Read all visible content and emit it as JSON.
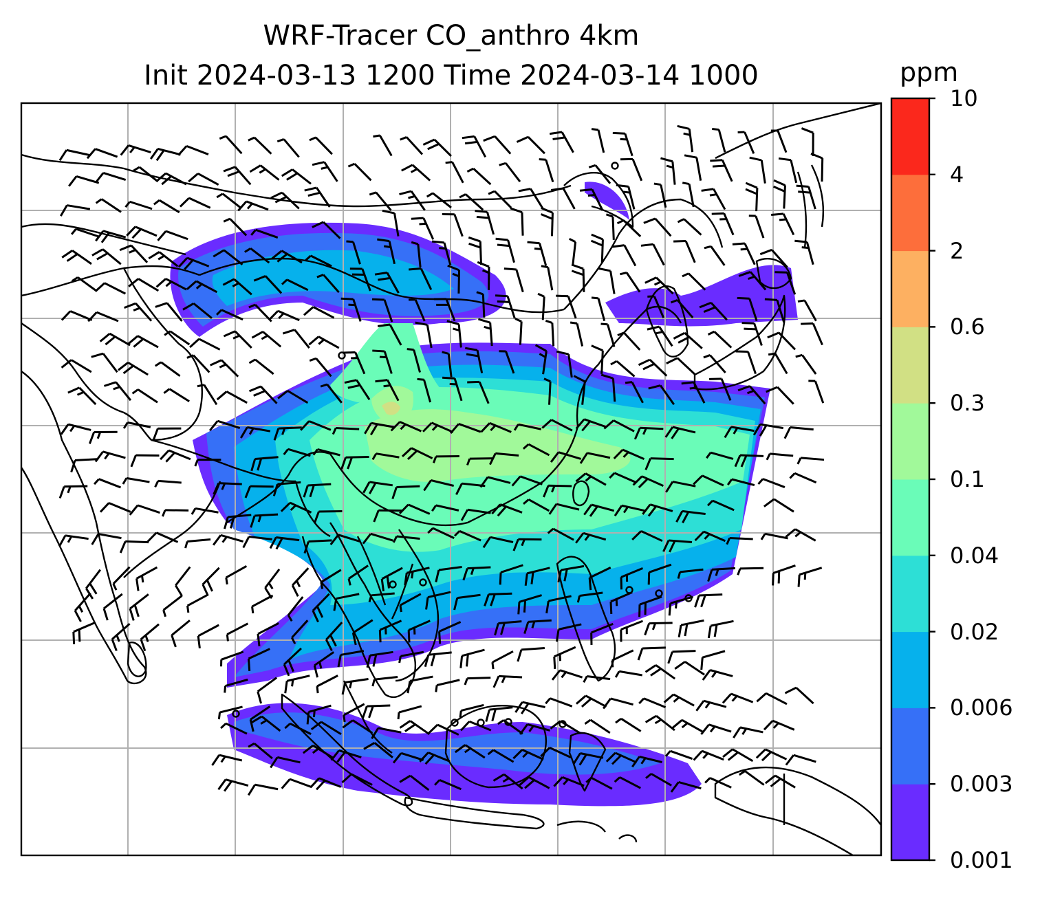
{
  "title_line1": "WRF-Tracer CO_anthro 4km",
  "title_line2": "Init 2024-03-13 1200 Time 2024-03-14 1000",
  "colorbar": {
    "unit": "ppm",
    "levels": [
      "0.001",
      "0.003",
      "0.006",
      "0.02",
      "0.04",
      "0.1",
      "0.3",
      "0.6",
      "2",
      "4",
      "10"
    ],
    "colors": [
      "#6a2cff",
      "#3670f7",
      "#06b1ec",
      "#2ddfd6",
      "#6afcb8",
      "#a1f99a",
      "#d1e084",
      "#fdb061",
      "#fd6e3b",
      "#fb281c"
    ]
  },
  "map": {
    "gridlines": true,
    "coastline_color": "#000000",
    "wind_barb_color": "#000000",
    "grid_color": "#b0b0b0"
  }
}
